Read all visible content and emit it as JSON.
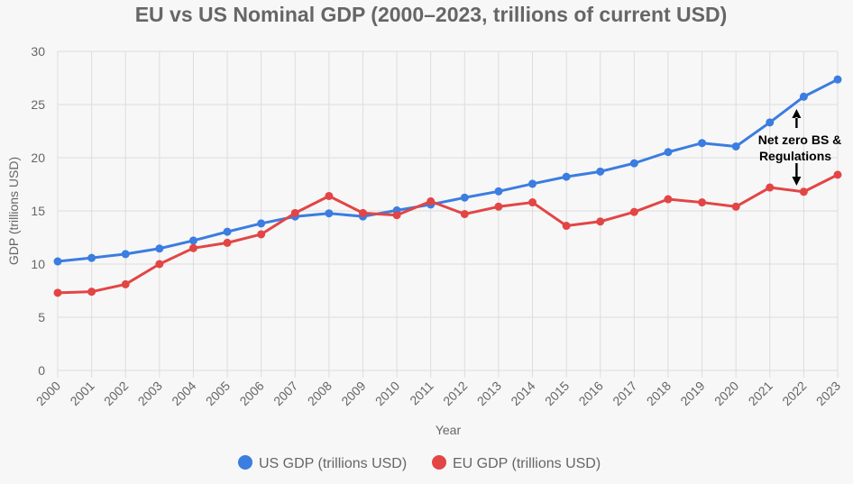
{
  "chart_data": {
    "type": "line",
    "title": "EU vs US Nominal GDP (2000–2023, trillions of current USD)",
    "xlabel": "Year",
    "ylabel": "GDP (trillions USD)",
    "ylim": [
      0,
      30
    ],
    "yticks": [
      0,
      5,
      10,
      15,
      20,
      25,
      30
    ],
    "categories": [
      "2000",
      "2001",
      "2002",
      "2003",
      "2004",
      "2005",
      "2006",
      "2007",
      "2008",
      "2009",
      "2010",
      "2011",
      "2012",
      "2013",
      "2014",
      "2015",
      "2016",
      "2017",
      "2018",
      "2019",
      "2020",
      "2021",
      "2022",
      "2023"
    ],
    "series": [
      {
        "name": "US GDP (trillions USD)",
        "color": "#3b7de0",
        "values": [
          10.25,
          10.58,
          10.94,
          11.46,
          12.21,
          13.04,
          13.82,
          14.47,
          14.77,
          14.48,
          15.05,
          15.6,
          16.25,
          16.84,
          17.55,
          18.21,
          18.7,
          19.48,
          20.53,
          21.38,
          21.06,
          23.32,
          25.74,
          27.36
        ]
      },
      {
        "name": "EU GDP (trillions USD)",
        "color": "#e34545",
        "values": [
          7.3,
          7.4,
          8.1,
          10.0,
          11.5,
          12.0,
          12.8,
          14.8,
          16.4,
          14.8,
          14.6,
          15.9,
          14.7,
          15.4,
          15.8,
          13.6,
          14.0,
          14.9,
          16.1,
          15.8,
          15.4,
          17.2,
          16.8,
          18.4
        ]
      }
    ],
    "legend_position": "bottom",
    "grid": true,
    "annotations": [
      {
        "text_line1": "Net zero BS &",
        "text_line2": "Regulations",
        "year": "2022"
      }
    ]
  }
}
